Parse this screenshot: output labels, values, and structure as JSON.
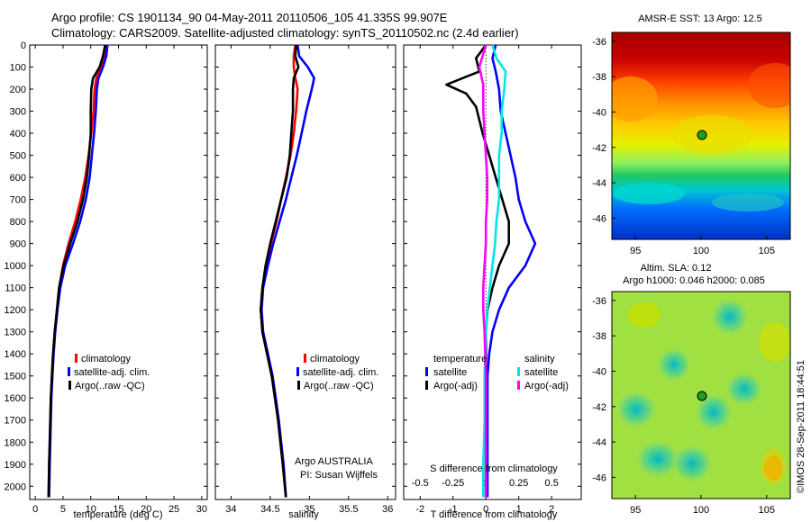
{
  "header": {
    "line1": "Argo profile: CS 1901134_90 04-May-2011 20110506_105 41.335S 99.907E",
    "line2": "Climatology: CARS2009. Satellite-adjusted climatology: synTS_20110502.nc (2.4d earlier)"
  },
  "colors": {
    "climatology": "#ff0000",
    "satellite": "#0000ff",
    "argo": "#000000",
    "sat_sal": "#00e5e5",
    "argo_sal": "#ff00ff"
  },
  "depth_ticks": [
    "0",
    "100",
    "200",
    "300",
    "400",
    "500",
    "600",
    "700",
    "800",
    "900",
    "1000",
    "1100",
    "1200",
    "1300",
    "1400",
    "1500",
    "1600",
    "1700",
    "1800",
    "1900",
    "2000"
  ],
  "panels": {
    "temperature": {
      "xlabel": "temperature (deg C)",
      "xticks": [
        "0",
        "5",
        "10",
        "15",
        "20",
        "25",
        "30"
      ],
      "legend": [
        "climatology",
        "satellite-adj. clim.",
        "Argo(..raw -QC)"
      ]
    },
    "salinity": {
      "xlabel": "salinity",
      "xticks": [
        "34",
        "34.5",
        "35",
        "35.5",
        "36"
      ],
      "legend": [
        "climatology",
        "satellite-adj. clim.",
        "Argo(..raw -QC)"
      ],
      "note1": "Argo AUSTRALIA",
      "note2": "PI: Susan Wijffels"
    },
    "difference": {
      "top_label": "S difference from climatology",
      "s_ticks": [
        "-0.5",
        "-0.25",
        "0",
        "0.25",
        "0.5"
      ],
      "xlabel": "T difference from climatology",
      "xticks": [
        "-2",
        "-1",
        "0",
        "1",
        "2"
      ],
      "legend_temp_title": "temperature",
      "legend_sal_title": "salinity",
      "legend_temp": [
        "satellite",
        "Argo(-adj)"
      ],
      "legend_sal": [
        "satellite",
        "Argo(-adj)"
      ]
    }
  },
  "maps": {
    "sst": {
      "title": "AMSR-E SST: 13 Argo: 12.5",
      "yticks": [
        "-36",
        "-38",
        "-40",
        "-42",
        "-44",
        "-46"
      ],
      "xticks": [
        "95",
        "100",
        "105"
      ]
    },
    "sla": {
      "title1": "Altim. SLA: 0.12",
      "title2": "Argo h1000: 0.046 h2000: 0.085",
      "yticks": [
        "-36",
        "-38",
        "-40",
        "-42",
        "-44",
        "-46"
      ],
      "xticks": [
        "95",
        "100",
        "105"
      ]
    }
  },
  "credit": "©IMOS 28-Sep-2011 18:44:51",
  "chart_data": [
    {
      "type": "line",
      "name": "temperature",
      "xlabel": "temperature (deg C)",
      "ylabel": "",
      "xlim": [
        -1,
        31
      ],
      "ylim": [
        2060,
        0
      ],
      "y_reversed": true,
      "series": [
        {
          "name": "climatology",
          "color": "#ff0000",
          "points": [
            [
              12.8,
              0
            ],
            [
              12.5,
              50
            ],
            [
              11.8,
              100
            ],
            [
              11.0,
              150
            ],
            [
              10.7,
              200
            ],
            [
              10.5,
              300
            ],
            [
              10.1,
              400
            ],
            [
              9.6,
              500
            ],
            [
              9.0,
              600
            ],
            [
              8.2,
              700
            ],
            [
              7.2,
              800
            ],
            [
              6.0,
              900
            ],
            [
              5.0,
              1000
            ],
            [
              4.3,
              1100
            ],
            [
              3.9,
              1200
            ],
            [
              3.5,
              1300
            ],
            [
              3.2,
              1400
            ],
            [
              3.0,
              1500
            ],
            [
              2.8,
              1600
            ],
            [
              2.7,
              1700
            ],
            [
              2.6,
              1800
            ],
            [
              2.5,
              1900
            ],
            [
              2.4,
              2050
            ]
          ]
        },
        {
          "name": "satellite-adj. clim.",
          "color": "#0000ff",
          "points": [
            [
              13.0,
              0
            ],
            [
              12.8,
              50
            ],
            [
              12.2,
              100
            ],
            [
              11.4,
              150
            ],
            [
              11.1,
              200
            ],
            [
              10.9,
              300
            ],
            [
              10.6,
              400
            ],
            [
              10.2,
              500
            ],
            [
              9.8,
              600
            ],
            [
              9.1,
              700
            ],
            [
              8.1,
              800
            ],
            [
              6.8,
              900
            ],
            [
              5.4,
              1000
            ],
            [
              4.5,
              1100
            ],
            [
              4.0,
              1200
            ],
            [
              3.6,
              1300
            ],
            [
              3.3,
              1400
            ],
            [
              3.1,
              1500
            ],
            [
              2.9,
              1600
            ],
            [
              2.8,
              1700
            ],
            [
              2.7,
              1800
            ],
            [
              2.6,
              1900
            ],
            [
              2.5,
              2050
            ]
          ]
        },
        {
          "name": "Argo(..raw -QC)",
          "color": "#000000",
          "points": [
            [
              12.6,
              0
            ],
            [
              12.2,
              50
            ],
            [
              11.6,
              100
            ],
            [
              10.4,
              150
            ],
            [
              10.1,
              200
            ],
            [
              10.0,
              300
            ],
            [
              10.0,
              400
            ],
            [
              9.7,
              500
            ],
            [
              9.3,
              600
            ],
            [
              8.6,
              700
            ],
            [
              7.6,
              800
            ],
            [
              6.3,
              900
            ],
            [
              5.1,
              1000
            ],
            [
              4.3,
              1100
            ],
            [
              3.9,
              1200
            ],
            [
              3.5,
              1300
            ],
            [
              3.2,
              1400
            ],
            [
              3.0,
              1500
            ],
            [
              2.8,
              1600
            ],
            [
              2.7,
              1700
            ],
            [
              2.6,
              1800
            ],
            [
              2.5,
              1900
            ],
            [
              2.4,
              2050
            ]
          ]
        }
      ]
    },
    {
      "type": "line",
      "name": "salinity",
      "xlabel": "salinity",
      "ylabel": "",
      "xlim": [
        33.8,
        36.1
      ],
      "ylim": [
        2060,
        0
      ],
      "y_reversed": true,
      "series": [
        {
          "name": "climatology",
          "color": "#ff0000",
          "points": [
            [
              34.82,
              0
            ],
            [
              34.8,
              50
            ],
            [
              34.8,
              100
            ],
            [
              34.82,
              150
            ],
            [
              34.85,
              200
            ],
            [
              34.83,
              300
            ],
            [
              34.8,
              400
            ],
            [
              34.76,
              500
            ],
            [
              34.7,
              600
            ],
            [
              34.64,
              700
            ],
            [
              34.58,
              800
            ],
            [
              34.51,
              900
            ],
            [
              34.45,
              1000
            ],
            [
              34.4,
              1100
            ],
            [
              34.38,
              1200
            ],
            [
              34.4,
              1300
            ],
            [
              34.46,
              1400
            ],
            [
              34.52,
              1500
            ],
            [
              34.56,
              1600
            ],
            [
              34.6,
              1700
            ],
            [
              34.63,
              1800
            ],
            [
              34.66,
              1900
            ],
            [
              34.7,
              2050
            ]
          ]
        },
        {
          "name": "satellite-adj. clim.",
          "color": "#0000ff",
          "points": [
            [
              34.85,
              0
            ],
            [
              34.87,
              50
            ],
            [
              34.98,
              100
            ],
            [
              35.06,
              150
            ],
            [
              35.03,
              200
            ],
            [
              34.96,
              300
            ],
            [
              34.9,
              400
            ],
            [
              34.84,
              500
            ],
            [
              34.77,
              600
            ],
            [
              34.7,
              700
            ],
            [
              34.62,
              800
            ],
            [
              34.54,
              900
            ],
            [
              34.47,
              1000
            ],
            [
              34.41,
              1100
            ],
            [
              34.39,
              1200
            ],
            [
              34.41,
              1300
            ],
            [
              34.47,
              1400
            ],
            [
              34.53,
              1500
            ],
            [
              34.57,
              1600
            ],
            [
              34.61,
              1700
            ],
            [
              34.64,
              1800
            ],
            [
              34.67,
              1900
            ],
            [
              34.7,
              2050
            ]
          ]
        },
        {
          "name": "Argo(..raw -QC)",
          "color": "#000000",
          "points": [
            [
              34.83,
              0
            ],
            [
              34.82,
              50
            ],
            [
              34.86,
              100
            ],
            [
              34.8,
              150
            ],
            [
              34.79,
              200
            ],
            [
              34.79,
              300
            ],
            [
              34.77,
              400
            ],
            [
              34.75,
              500
            ],
            [
              34.71,
              600
            ],
            [
              34.64,
              700
            ],
            [
              34.57,
              800
            ],
            [
              34.5,
              900
            ],
            [
              34.44,
              1000
            ],
            [
              34.4,
              1100
            ],
            [
              34.38,
              1200
            ],
            [
              34.4,
              1300
            ],
            [
              34.46,
              1400
            ],
            [
              34.52,
              1500
            ],
            [
              34.56,
              1600
            ],
            [
              34.6,
              1700
            ],
            [
              34.63,
              1800
            ],
            [
              34.66,
              1900
            ],
            [
              34.7,
              2050
            ]
          ]
        }
      ]
    },
    {
      "type": "line",
      "name": "difference",
      "xlabel": "T difference from climatology",
      "top_xlabel": "S difference from climatology",
      "xlim": [
        -2.5,
        2.9
      ],
      "s_xlim": [
        -0.625,
        0.725
      ],
      "ylim": [
        2060,
        0
      ],
      "y_reversed": true,
      "series": [
        {
          "name": "temperature satellite",
          "color": "#0000ff",
          "points": [
            [
              0.3,
              0
            ],
            [
              0.2,
              60
            ],
            [
              0.3,
              120
            ],
            [
              0.4,
              200
            ],
            [
              0.45,
              300
            ],
            [
              0.6,
              400
            ],
            [
              0.75,
              500
            ],
            [
              0.9,
              600
            ],
            [
              1.0,
              700
            ],
            [
              1.2,
              800
            ],
            [
              1.5,
              900
            ],
            [
              1.2,
              1000
            ],
            [
              0.7,
              1100
            ],
            [
              0.4,
              1200
            ],
            [
              0.2,
              1300
            ],
            [
              0.1,
              1400
            ],
            [
              0.05,
              1500
            ],
            [
              0.05,
              1700
            ],
            [
              0.05,
              1900
            ],
            [
              0.05,
              2050
            ]
          ]
        },
        {
          "name": "temperature Argo(-adj)",
          "color": "#000000",
          "points": [
            [
              0.0,
              0
            ],
            [
              -0.3,
              60
            ],
            [
              -0.2,
              120
            ],
            [
              -1.2,
              180
            ],
            [
              -0.6,
              220
            ],
            [
              -0.3,
              280
            ],
            [
              -0.1,
              400
            ],
            [
              0.1,
              500
            ],
            [
              0.3,
              600
            ],
            [
              0.5,
              700
            ],
            [
              0.7,
              800
            ],
            [
              0.7,
              900
            ],
            [
              0.4,
              1000
            ],
            [
              0.2,
              1100
            ],
            [
              0.05,
              1200
            ],
            [
              0.0,
              1300
            ],
            [
              0.0,
              1500
            ],
            [
              0.0,
              2050
            ]
          ]
        },
        {
          "name": "salinity satellite",
          "color": "#00e5e5",
          "points": [
            [
              0.05,
              0
            ],
            [
              0.08,
              60
            ],
            [
              0.15,
              120
            ],
            [
              0.14,
              200
            ],
            [
              0.12,
              300
            ],
            [
              0.12,
              400
            ],
            [
              0.1,
              500
            ],
            [
              0.1,
              600
            ],
            [
              0.1,
              700
            ],
            [
              0.08,
              800
            ],
            [
              0.07,
              900
            ],
            [
              0.05,
              1000
            ],
            [
              0.03,
              1100
            ],
            [
              0.01,
              1200
            ],
            [
              0.0,
              1300
            ],
            [
              -0.01,
              1500
            ],
            [
              -0.01,
              1700
            ],
            [
              -0.02,
              1900
            ],
            [
              -0.02,
              2050
            ]
          ]
        },
        {
          "name": "salinity Argo(-adj)",
          "color": "#ff00ff",
          "points": [
            [
              0.0,
              0
            ],
            [
              -0.03,
              60
            ],
            [
              -0.05,
              100
            ],
            [
              -0.02,
              180
            ],
            [
              -0.02,
              300
            ],
            [
              -0.01,
              400
            ],
            [
              0.0,
              500
            ],
            [
              0.01,
              600
            ],
            [
              0.01,
              700
            ],
            [
              0.0,
              800
            ],
            [
              0.0,
              900
            ],
            [
              -0.01,
              1000
            ],
            [
              -0.02,
              1100
            ],
            [
              -0.02,
              1200
            ],
            [
              -0.01,
              1300
            ],
            [
              0.0,
              1500
            ],
            [
              0.0,
              2050
            ]
          ]
        }
      ]
    }
  ]
}
